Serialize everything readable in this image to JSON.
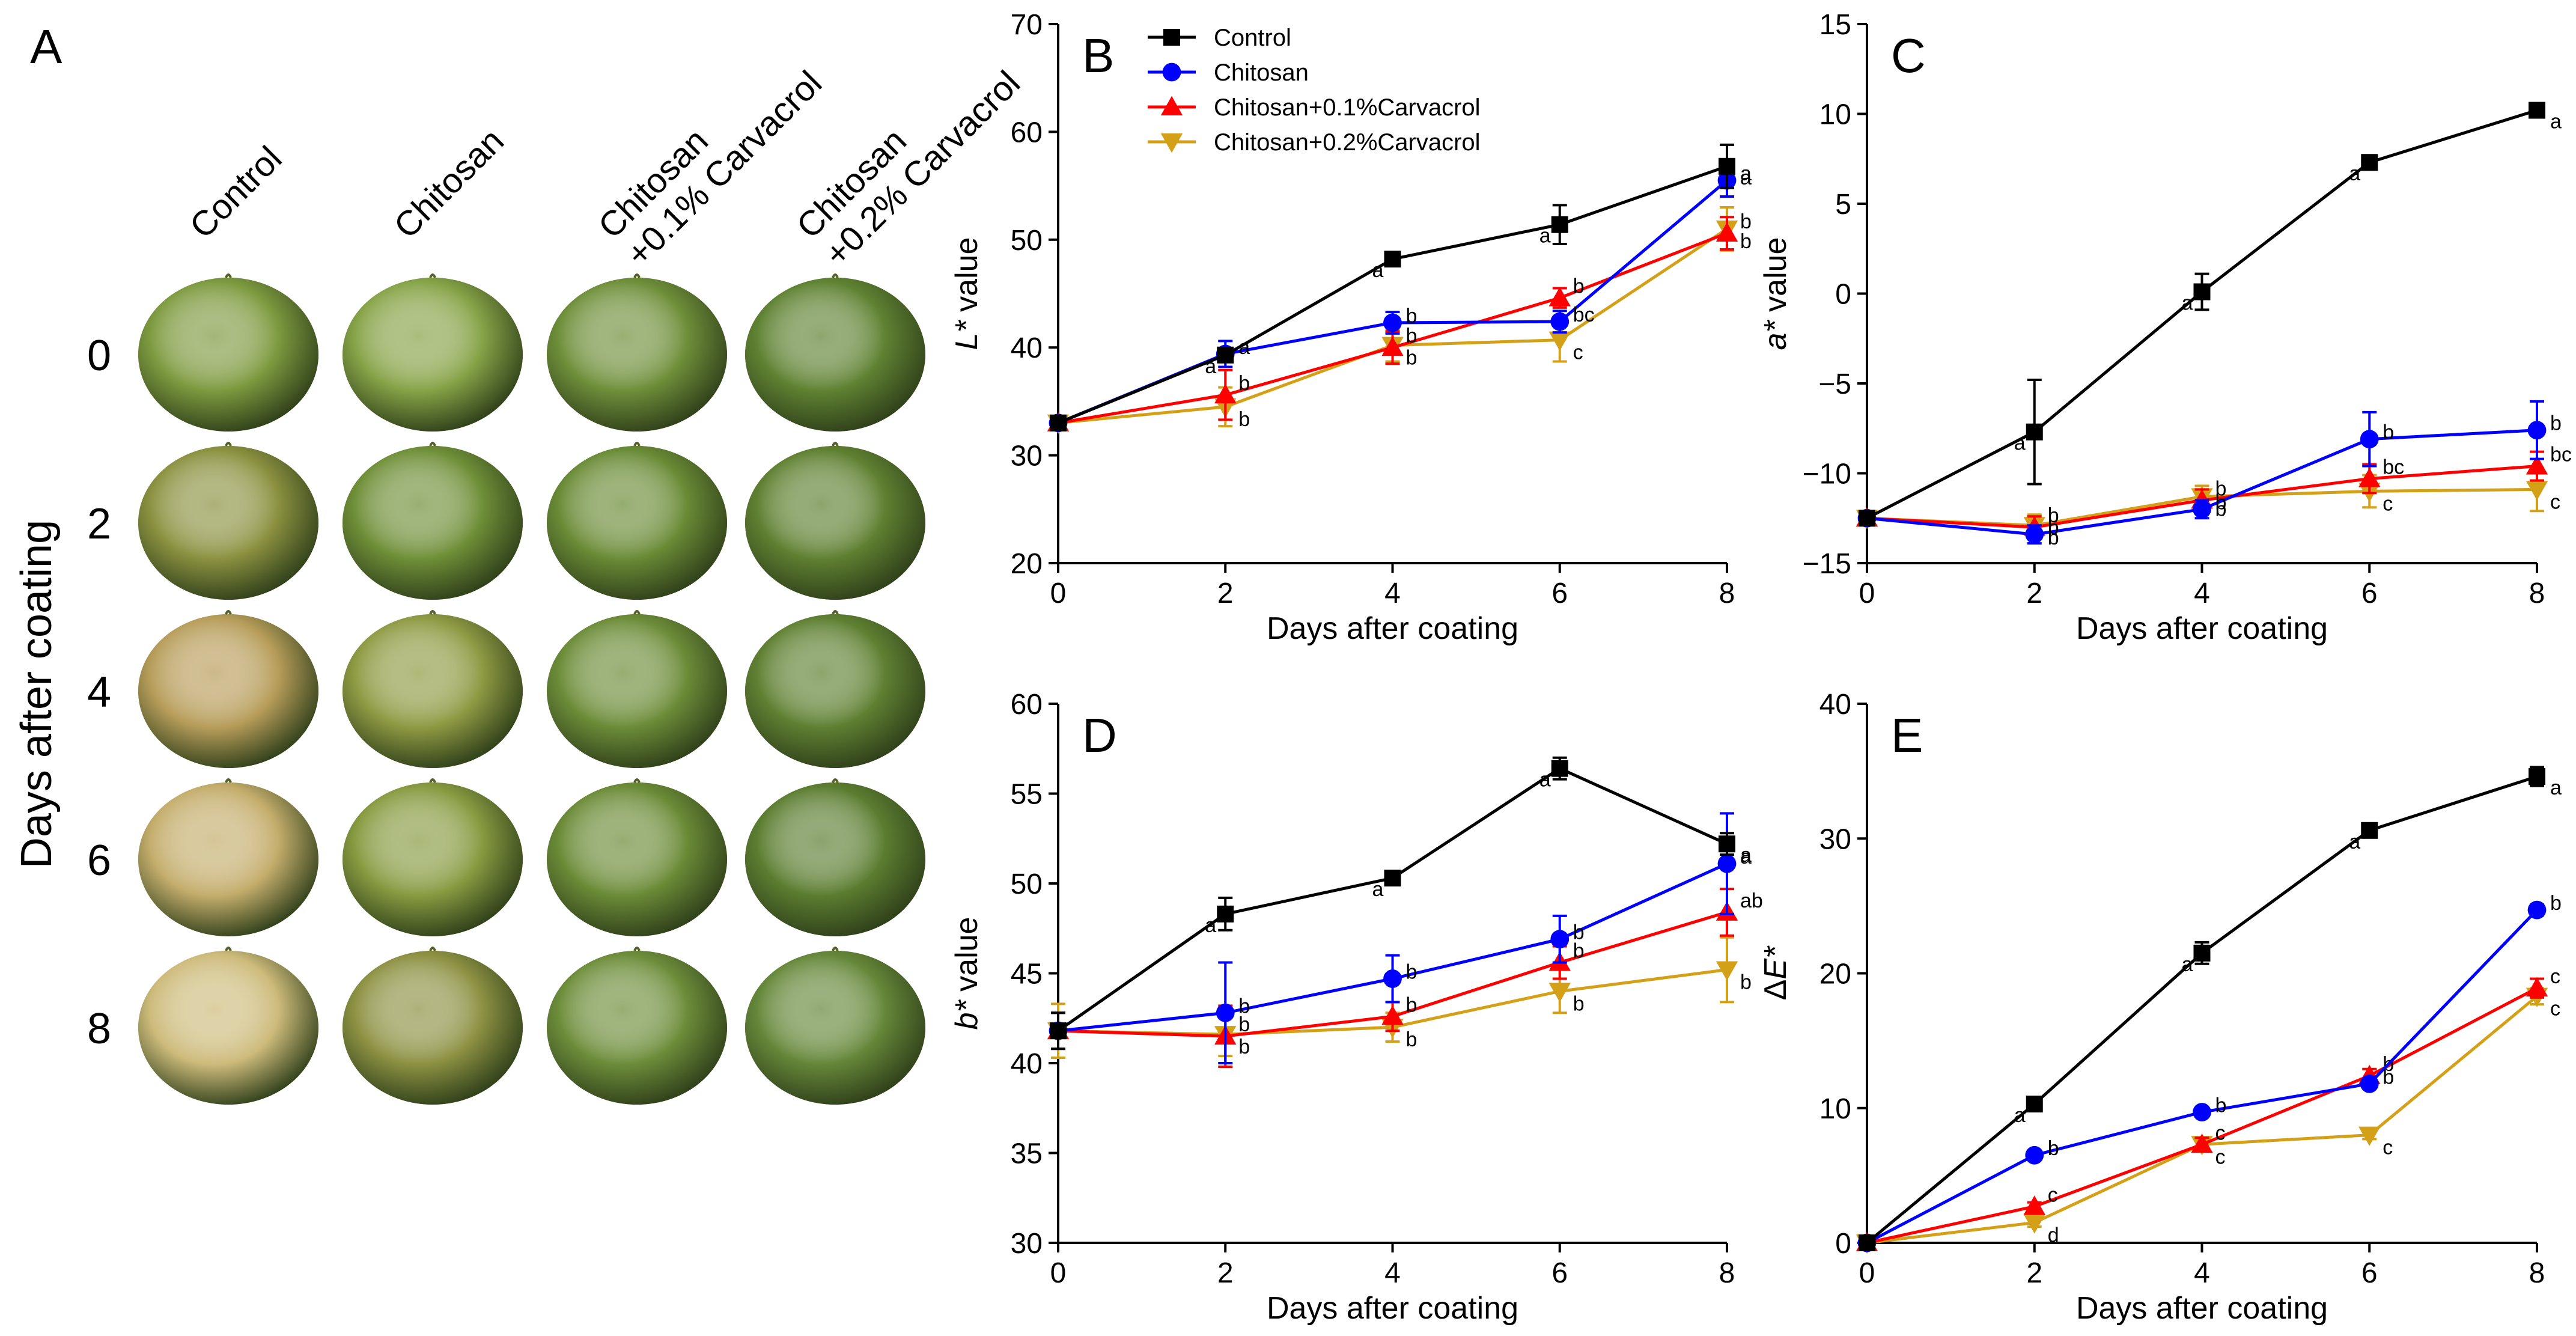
{
  "figure": {
    "panel_a": {
      "letter": "A",
      "treatments": [
        "Control",
        "Chitosan",
        "Chitosan\n+0.1% Carvacrol",
        "Chitosan\n+0.2% Carvacrol"
      ],
      "days_label": "Days after coating",
      "days": [
        "0",
        "2",
        "4",
        "6",
        "8"
      ],
      "fruit_colors": [
        [
          "#7d9a3f",
          "#86a347",
          "#6f8f3a",
          "#5f8232"
        ],
        [
          "#8b9140",
          "#6f8f38",
          "#6a8b36",
          "#5f8031"
        ],
        [
          "#b79d5a",
          "#8f9a43",
          "#6c8c38",
          "#5f8032"
        ],
        [
          "#c4ad6c",
          "#879a40",
          "#6b8b37",
          "#5b7d30"
        ],
        [
          "#cdbb7b",
          "#8c9142",
          "#6d8d3a",
          "#658739"
        ]
      ]
    },
    "legend": {
      "entries": [
        {
          "label": "Control",
          "color": "#000000",
          "marker": "square"
        },
        {
          "label": "Chitosan",
          "color": "#0000ff",
          "marker": "circle"
        },
        {
          "label": "Chitosan+0.1%Carvacrol",
          "color": "#ff0000",
          "marker": "triangle-up"
        },
        {
          "label": "Chitosan+0.2%Carvacrol",
          "color": "#d4a017",
          "marker": "triangle-down"
        }
      ]
    }
  },
  "chart_data": [
    {
      "id": "B",
      "type": "line",
      "letter": "B",
      "xlabel": "Days after coating",
      "ylabel_italic": "L*",
      "ylabel_rest": " value",
      "x": [
        0,
        2,
        4,
        6,
        8
      ],
      "xlim": [
        0,
        8
      ],
      "xticks": [
        0,
        2,
        4,
        6,
        8
      ],
      "ylim": [
        20,
        70
      ],
      "yticks": [
        20,
        30,
        40,
        50,
        60,
        70
      ],
      "series": [
        {
          "name": "Control",
          "values": [
            33.0,
            39.3,
            48.2,
            51.4,
            56.8
          ],
          "errors": [
            0.5,
            0.6,
            0.6,
            1.8,
            2.0
          ],
          "labels": [
            "",
            "a",
            "a",
            "a",
            "a"
          ]
        },
        {
          "name": "Chitosan",
          "values": [
            33.0,
            39.4,
            42.3,
            42.4,
            55.5
          ],
          "errors": [
            0.5,
            1.2,
            1.0,
            1.0,
            1.5
          ],
          "labels": [
            "",
            "a",
            "b",
            "bc",
            "a"
          ]
        },
        {
          "name": "Chitosan+0.1%Carvacrol",
          "values": [
            33.0,
            35.6,
            40.0,
            44.6,
            50.6
          ],
          "errors": [
            0.5,
            2.3,
            1.5,
            0.9,
            1.5
          ],
          "labels": [
            "",
            "b",
            "b",
            "b",
            "b"
          ]
        },
        {
          "name": "Chitosan+0.2%Carvacrol",
          "values": [
            33.0,
            34.5,
            40.2,
            40.7,
            51.0
          ],
          "errors": [
            0.5,
            1.8,
            1.5,
            2.0,
            2.0
          ],
          "labels": [
            "",
            "b",
            "b",
            "c",
            "b"
          ]
        }
      ]
    },
    {
      "id": "C",
      "type": "line",
      "letter": "C",
      "xlabel": "Days after coating",
      "ylabel_italic": "a*",
      "ylabel_rest": " value",
      "x": [
        0,
        2,
        4,
        6,
        8
      ],
      "xlim": [
        0,
        8
      ],
      "xticks": [
        0,
        2,
        4,
        6,
        8
      ],
      "ylim": [
        -15,
        15
      ],
      "yticks": [
        -15,
        -10,
        -5,
        0,
        5,
        10,
        15
      ],
      "series": [
        {
          "name": "Control",
          "values": [
            -12.5,
            -7.7,
            0.1,
            7.3,
            10.2
          ],
          "errors": [
            0.3,
            2.9,
            1.0,
            0.2,
            0.3
          ],
          "labels": [
            "",
            "a",
            "a",
            "a",
            "a"
          ]
        },
        {
          "name": "Chitosan",
          "values": [
            -12.5,
            -13.4,
            -12.0,
            -8.1,
            -7.6
          ],
          "errors": [
            0.3,
            0.5,
            0.5,
            1.5,
            1.6
          ],
          "labels": [
            "",
            "b",
            "b",
            "b",
            "b"
          ]
        },
        {
          "name": "Chitosan+0.1%Carvacrol",
          "values": [
            -12.5,
            -13.0,
            -11.5,
            -10.3,
            -9.6
          ],
          "errors": [
            0.3,
            0.6,
            0.6,
            0.8,
            0.8
          ],
          "labels": [
            "",
            "b",
            "b",
            "bc",
            "bc"
          ]
        },
        {
          "name": "Chitosan+0.2%Carvacrol",
          "values": [
            -12.5,
            -12.9,
            -11.3,
            -11.0,
            -10.9
          ],
          "errors": [
            0.3,
            0.6,
            0.6,
            0.9,
            1.2
          ],
          "labels": [
            "",
            "b",
            "b",
            "c",
            "c"
          ]
        }
      ]
    },
    {
      "id": "D",
      "type": "line",
      "letter": "D",
      "xlabel": "Days after coating",
      "ylabel_italic": "b*",
      "ylabel_rest": " value",
      "x": [
        0,
        2,
        4,
        6,
        8
      ],
      "xlim": [
        0,
        8
      ],
      "xticks": [
        0,
        2,
        4,
        6,
        8
      ],
      "ylim": [
        30,
        60
      ],
      "yticks": [
        30,
        35,
        40,
        45,
        50,
        55,
        60
      ],
      "series": [
        {
          "name": "Control",
          "values": [
            41.8,
            48.3,
            50.3,
            56.4,
            52.2
          ],
          "errors": [
            1.0,
            0.9,
            0.3,
            0.6,
            0.6
          ],
          "labels": [
            "",
            "a",
            "a",
            "a",
            "a"
          ]
        },
        {
          "name": "Chitosan",
          "values": [
            41.8,
            42.8,
            44.7,
            46.9,
            51.1
          ],
          "errors": [
            1.0,
            2.8,
            1.3,
            1.3,
            2.8
          ],
          "labels": [
            "",
            "b",
            "b",
            "b",
            "a"
          ]
        },
        {
          "name": "Chitosan+0.1%Carvacrol",
          "values": [
            41.8,
            41.5,
            42.6,
            45.6,
            48.4
          ],
          "errors": [
            1.0,
            1.7,
            0.8,
            0.9,
            1.3
          ],
          "labels": [
            "",
            "b",
            "b",
            "b",
            "ab"
          ]
        },
        {
          "name": "Chitosan+0.2%Carvacrol",
          "values": [
            41.8,
            41.6,
            42.0,
            44.0,
            45.2
          ],
          "errors": [
            1.5,
            1.2,
            0.8,
            1.2,
            1.8
          ],
          "labels": [
            "",
            "b",
            "b",
            "b",
            "b"
          ]
        }
      ]
    },
    {
      "id": "E",
      "type": "line",
      "letter": "E",
      "xlabel": "Days after coating",
      "ylabel_prefix": "Δ",
      "ylabel_italic": "E*",
      "ylabel_rest": "",
      "x": [
        0,
        2,
        4,
        6,
        8
      ],
      "xlim": [
        0,
        8
      ],
      "xticks": [
        0,
        2,
        4,
        6,
        8
      ],
      "ylim": [
        0,
        40
      ],
      "yticks": [
        0,
        10,
        20,
        30,
        40
      ],
      "series": [
        {
          "name": "Control",
          "values": [
            0,
            10.3,
            21.5,
            30.6,
            34.6
          ],
          "errors": [
            0.2,
            0.3,
            0.8,
            0.3,
            0.7
          ],
          "labels": [
            "",
            "a",
            "a",
            "a",
            "a"
          ]
        },
        {
          "name": "Chitosan",
          "values": [
            0,
            6.5,
            9.7,
            11.8,
            24.7
          ],
          "errors": [
            0.2,
            0.3,
            0.3,
            0.3,
            0.4
          ],
          "labels": [
            "",
            "b",
            "b",
            "b",
            "b"
          ]
        },
        {
          "name": "Chitosan+0.1%Carvacrol",
          "values": [
            0,
            2.7,
            7.3,
            12.4,
            18.9
          ],
          "errors": [
            0.2,
            0.3,
            0.5,
            0.5,
            0.7
          ],
          "labels": [
            "",
            "c",
            "c",
            "b",
            "c"
          ]
        },
        {
          "name": "Chitosan+0.2%Carvacrol",
          "values": [
            0,
            1.5,
            7.3,
            8.0,
            18.3
          ],
          "errors": [
            0.2,
            0.3,
            0.5,
            0.3,
            0.6
          ],
          "labels": [
            "",
            "d",
            "c",
            "c",
            "c"
          ]
        }
      ]
    }
  ]
}
